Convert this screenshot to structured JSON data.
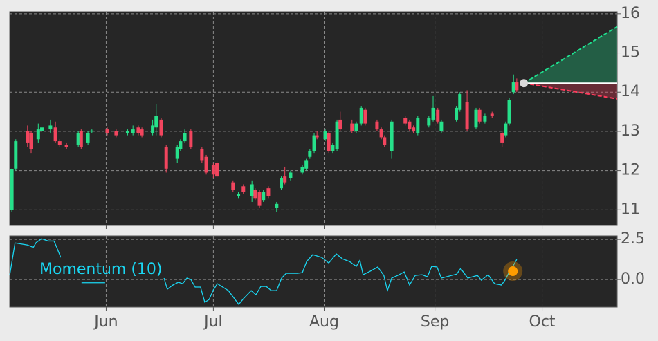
{
  "chart_data": [
    {
      "type": "candlestick",
      "x": [
        0.6,
        1.7,
        5,
        6,
        8,
        9,
        11.4,
        12.8,
        14,
        15.9,
        19.2,
        20,
        21.9,
        23,
        27.3,
        29.8,
        33,
        34.5,
        36,
        37,
        40,
        41,
        42.4,
        43.8,
        46.9,
        47.8,
        49,
        50.7,
        53.8,
        55,
        57,
        58,
        62.5,
        64,
        65.4,
        67.8,
        68.7,
        69.9,
        71,
        72.4,
        74.7,
        76,
        77,
        78.6,
        81.9,
        83,
        84,
        85.2,
        86,
        88.3,
        89.3,
        90.4,
        91.6,
        92.5,
        95.8,
        97,
        98.4,
        99.5,
        102.8,
        104,
        104.9,
        106.9,
        110.7,
        111.9,
        113,
        114.2,
        117.3,
        118.5,
        119.8,
        120.8,
        125,
        126,
        128,
        130.5,
        131.5,
        133,
        135,
        137.8,
        138.8,
        139.8,
        141,
        141.9
      ],
      "open": [
        11.0,
        12.05,
        13.0,
        12.95,
        12.8,
        13.0,
        13.05,
        13.1,
        12.75,
        12.65,
        12.65,
        13.0,
        12.7,
        13.0,
        13.05,
        13.0,
        12.95,
        12.95,
        13.1,
        13.05,
        12.95,
        13.1,
        13.3,
        12.6,
        12.3,
        12.55,
        12.75,
        13.0,
        12.55,
        12.35,
        12.15,
        12.2,
        11.7,
        11.35,
        11.6,
        11.35,
        11.5,
        11.45,
        11.25,
        11.55,
        11.05,
        11.55,
        11.85,
        11.8,
        11.95,
        12.05,
        12.35,
        12.5,
        12.9,
        12.8,
        12.95,
        12.5,
        12.55,
        13.3,
        13.2,
        13.0,
        13.2,
        13.55,
        13.25,
        13.05,
        12.85,
        12.5,
        13.35,
        13.25,
        13.1,
        12.95,
        13.15,
        13.3,
        13.55,
        13.0,
        13.3,
        13.55,
        13.75,
        13.1,
        13.55,
        13.25,
        13.45,
        12.95,
        12.9,
        13.2,
        14.0,
        14.25
      ],
      "high": [
        12.05,
        12.8,
        13.15,
        13.0,
        13.2,
        13.15,
        13.3,
        13.25,
        12.8,
        12.7,
        13.0,
        13.05,
        13.0,
        13.05,
        13.1,
        13.05,
        13.05,
        13.15,
        13.15,
        13.1,
        13.3,
        13.7,
        13.35,
        12.65,
        12.65,
        12.8,
        13.05,
        13.05,
        12.6,
        12.4,
        12.2,
        12.25,
        11.75,
        11.45,
        11.65,
        11.75,
        11.55,
        11.5,
        11.5,
        11.6,
        11.2,
        11.85,
        12.1,
        12.0,
        12.15,
        12.3,
        12.55,
        12.95,
        13.0,
        13.05,
        13.0,
        12.7,
        13.3,
        13.5,
        13.3,
        13.25,
        13.65,
        13.6,
        13.3,
        13.1,
        12.9,
        13.3,
        13.4,
        13.3,
        13.15,
        13.4,
        13.4,
        13.9,
        13.6,
        13.3,
        13.65,
        14.0,
        14.05,
        13.6,
        13.6,
        13.45,
        13.5,
        13.0,
        13.25,
        13.85,
        14.45,
        14.35
      ],
      "low": [
        10.95,
        12.0,
        12.6,
        12.45,
        12.7,
        12.95,
        12.95,
        12.7,
        12.6,
        12.55,
        12.6,
        12.55,
        12.65,
        12.95,
        12.9,
        12.85,
        12.9,
        12.9,
        12.9,
        12.85,
        12.9,
        12.9,
        12.85,
        11.95,
        12.2,
        12.5,
        12.7,
        12.55,
        12.2,
        11.9,
        11.8,
        11.8,
        11.45,
        11.3,
        11.4,
        11.2,
        11.25,
        11.05,
        11.2,
        11.3,
        10.95,
        11.5,
        11.65,
        11.75,
        11.9,
        12.0,
        12.3,
        12.45,
        12.8,
        12.75,
        12.45,
        12.45,
        12.5,
        13.0,
        12.95,
        12.95,
        13.15,
        13.15,
        13.0,
        12.8,
        12.6,
        12.3,
        13.15,
        13.0,
        12.95,
        12.9,
        13.1,
        13.25,
        13.2,
        12.95,
        13.25,
        13.5,
        13.0,
        13.05,
        13.2,
        13.2,
        13.35,
        12.6,
        12.85,
        13.15,
        13.95,
        14.0
      ],
      "close": [
        12.03,
        12.75,
        12.7,
        12.55,
        13.05,
        13.1,
        13.15,
        12.75,
        12.65,
        12.6,
        12.95,
        12.6,
        12.95,
        13.02,
        12.95,
        12.9,
        13.0,
        13.05,
        12.95,
        12.9,
        13.15,
        13.4,
        12.9,
        12.05,
        12.6,
        12.75,
        12.95,
        12.6,
        12.25,
        11.95,
        11.9,
        11.85,
        11.5,
        11.4,
        11.45,
        11.65,
        11.3,
        11.1,
        11.45,
        11.35,
        11.15,
        11.8,
        11.7,
        11.95,
        12.1,
        12.25,
        12.5,
        12.9,
        12.85,
        13.0,
        12.5,
        12.65,
        13.25,
        13.05,
        13.0,
        13.2,
        13.6,
        13.2,
        13.05,
        12.85,
        12.65,
        13.25,
        13.2,
        13.05,
        13.0,
        13.35,
        13.35,
        13.6,
        13.25,
        13.25,
        13.6,
        13.95,
        13.05,
        13.55,
        13.25,
        13.4,
        13.4,
        12.7,
        13.2,
        13.8,
        14.25,
        14.05
      ],
      "up_color": "#26e08a",
      "down_color": "#f2455e",
      "forecast": {
        "x": [
          143.9,
          170
        ],
        "mid": [
          14.23,
          14.23
        ],
        "upper": [
          14.23,
          15.67
        ],
        "lower": [
          14.23,
          13.83
        ],
        "up_color": "#1fe08f",
        "down_color": "#ff3b5c",
        "point_color": "#d9d9d9"
      },
      "xlim": [
        0,
        170
      ],
      "ylim": [
        10.6,
        16.05
      ],
      "yticks": [
        11,
        12,
        13,
        14,
        15,
        16
      ],
      "grid": true
    },
    {
      "type": "line",
      "series": [
        {
          "name": "Momentum (10)",
          "color": "#1ad6f2",
          "x": [
            0,
            1.5,
            5,
            6.6,
            7.4,
            8.9,
            10.8,
            12.4,
            13.2,
            14.3,
            15,
            20.1,
            23.4,
            26.7,
            30,
            43.2,
            44.1,
            45.7,
            47.2,
            48.4,
            49.6,
            50.7,
            51.9,
            53.4,
            54.6,
            55.8,
            56.9,
            58.1,
            61.2,
            64.1,
            65.4,
            67.6,
            68.9,
            70.3,
            71.8,
            73.2,
            74.7,
            76.1,
            77.4,
            80.5,
            81.9,
            83.1,
            84.8,
            87.3,
            89.3,
            91.4,
            93.1,
            95.1,
            97,
            98,
            98.9,
            100.9,
            103,
            104.7,
            105.7,
            106.9,
            108.6,
            110.4,
            111.9,
            113.5,
            115.4,
            116.9,
            118.1,
            119.6,
            120.8,
            125.1,
            126.2,
            128.2,
            130.9,
            132,
            133.9,
            135.7,
            137.6,
            138.6,
            139.8,
            140.9,
            141.9
          ],
          "values": [
            0.26,
            2.28,
            2.15,
            2.0,
            2.3,
            2.54,
            2.4,
            2.4,
            1.98,
            1.38,
            null,
            -0.2,
            -0.2,
            -0.2,
            null,
            0.09,
            -0.6,
            -0.34,
            -0.17,
            -0.26,
            0.09,
            0,
            -0.47,
            -0.47,
            -1.42,
            -1.25,
            -0.69,
            -0.26,
            -0.69,
            -1.55,
            -1.2,
            -0.69,
            -0.95,
            -0.43,
            -0.43,
            -0.69,
            -0.69,
            0.09,
            0.39,
            0.39,
            0.43,
            1.12,
            1.55,
            1.38,
            1.03,
            1.6,
            1.29,
            1.12,
            0.82,
            1.2,
            0.3,
            0.52,
            0.78,
            0.26,
            -0.69,
            0.09,
            0.26,
            0.47,
            -0.34,
            0.26,
            0.3,
            0.17,
            0.82,
            0.78,
            0.09,
            0.34,
            0.69,
            0.09,
            0.26,
            -0.04,
            0.3,
            -0.26,
            -0.34,
            -0.04,
            0.47,
            0.86,
            1.25
          ]
        }
      ],
      "marker": {
        "x": 140.8,
        "value": 0.52,
        "color": "#ff9d00"
      },
      "xlim": [
        0,
        170
      ],
      "ylim": [
        -1.72,
        2.72
      ],
      "yticks": [
        2.5,
        {
          "value": 0,
          "label": "0.0"
        }
      ],
      "xticks": [
        {
          "value": 27,
          "label": "Jun"
        },
        {
          "value": 57,
          "label": "Jul"
        },
        {
          "value": 88,
          "label": "Aug"
        },
        {
          "value": 119,
          "label": "Sep"
        },
        {
          "value": 149,
          "label": "Oct"
        }
      ],
      "grid": true
    }
  ]
}
